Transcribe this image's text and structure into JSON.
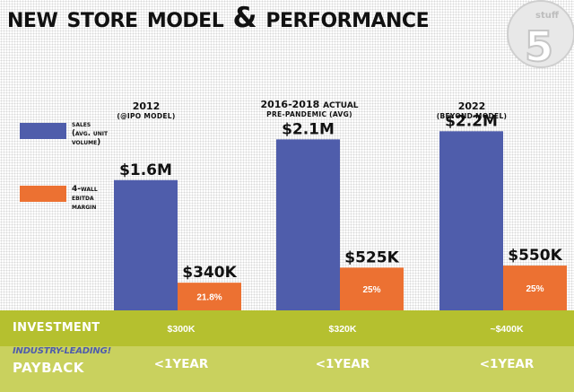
{
  "title": "NEW STORE MODEL & PERFORMANCE",
  "badge": {
    "text_top": "stuff",
    "number": "5"
  },
  "legend": {
    "sales": {
      "label": "SALES",
      "sub": "(AVG. UNIT VOLUME)",
      "color": "#4f5dab"
    },
    "ebitda": {
      "label": "4-WALL EBITDA MARGIN",
      "color": "#ec7132"
    }
  },
  "columns": [
    {
      "year": "2012",
      "sub": "(@IPO MODEL)",
      "actual": ""
    },
    {
      "year": "2016-2018",
      "sub": "PRE-PANDEMIC (AVG)",
      "actual": "ACTUAL"
    },
    {
      "year": "2022",
      "sub": "(BEYOND MODEL)",
      "actual": ""
    }
  ],
  "chart_data": {
    "type": "bar",
    "categories": [
      "2012",
      "2016-2018",
      "2022"
    ],
    "series": [
      {
        "name": "SALES",
        "values": [
          1.6,
          2.1,
          2.2
        ],
        "labels": [
          "$1.6M",
          "$2.1M",
          "$2.2M"
        ],
        "color": "#4f5dab"
      },
      {
        "name": "4-WALL EBITDA MARGIN",
        "values": [
          0.34,
          0.525,
          0.55
        ],
        "labels": [
          "$340K",
          "$525K",
          "$550K"
        ],
        "percent_labels": [
          "21.8%",
          "25%",
          "25%"
        ],
        "color": "#ec7132"
      }
    ],
    "ylim": [
      0,
      2.6
    ]
  },
  "investment": {
    "label": "INVESTMENT",
    "values": [
      "$300K",
      "$320K",
      "~$400K"
    ]
  },
  "payback": {
    "sub": "INDUSTRY-LEADING!",
    "label": "PAYBACK",
    "values": [
      "<1YEAR",
      "<1YEAR",
      "<1YEAR"
    ]
  }
}
